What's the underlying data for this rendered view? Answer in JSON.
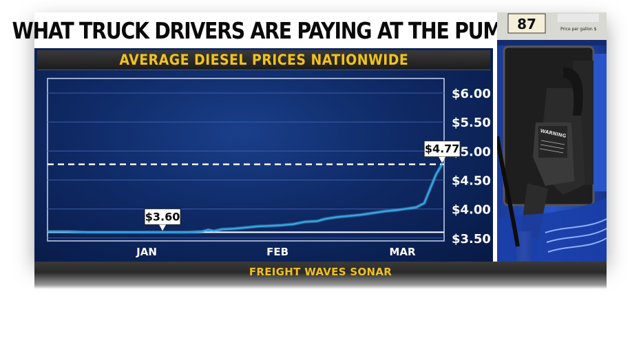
{
  "headline": "WHAT TRUCK DRIVERS ARE PAYING AT THE PUMP",
  "source": "FREIGHT WAVES SONAR",
  "pump_sign": {
    "grade": "87",
    "price_label": "Price per gallon $",
    "warning": "WARNING"
  },
  "colors": {
    "accent": "#f2c21b",
    "line": "#2ea8e6",
    "background": "#0f2a66"
  },
  "chart_data": {
    "type": "line",
    "title": "AVERAGE DIESEL PRICES NATIONWIDE",
    "xlabel": "",
    "ylabel": "",
    "ylim": [
      3.45,
      6.25
    ],
    "y_ticks": [
      {
        "value": 6.0,
        "label": "$6.00"
      },
      {
        "value": 5.5,
        "label": "$5.50"
      },
      {
        "value": 5.0,
        "label": "$5.00"
      },
      {
        "value": 4.5,
        "label": "$4.50"
      },
      {
        "value": 4.0,
        "label": "$4.00"
      },
      {
        "value": 3.5,
        "label": "$3.50"
      }
    ],
    "x_ticks": [
      {
        "t": 0.25,
        "label": "JAN"
      },
      {
        "t": 0.58,
        "label": "FEB"
      },
      {
        "t": 0.895,
        "label": "MAR"
      }
    ],
    "grid": true,
    "series": [
      {
        "name": "",
        "points": [
          [
            0.0,
            3.61
          ],
          [
            0.05,
            3.61
          ],
          [
            0.1,
            3.6
          ],
          [
            0.15,
            3.6
          ],
          [
            0.2,
            3.6
          ],
          [
            0.25,
            3.6
          ],
          [
            0.3,
            3.6
          ],
          [
            0.35,
            3.6
          ],
          [
            0.39,
            3.61
          ],
          [
            0.405,
            3.64
          ],
          [
            0.42,
            3.62
          ],
          [
            0.44,
            3.65
          ],
          [
            0.47,
            3.66
          ],
          [
            0.5,
            3.68
          ],
          [
            0.53,
            3.7
          ],
          [
            0.56,
            3.71
          ],
          [
            0.59,
            3.72
          ],
          [
            0.62,
            3.74
          ],
          [
            0.65,
            3.78
          ],
          [
            0.68,
            3.79
          ],
          [
            0.7,
            3.83
          ],
          [
            0.73,
            3.86
          ],
          [
            0.76,
            3.88
          ],
          [
            0.79,
            3.9
          ],
          [
            0.82,
            3.93
          ],
          [
            0.85,
            3.96
          ],
          [
            0.88,
            3.98
          ],
          [
            0.91,
            4.01
          ],
          [
            0.93,
            4.03
          ],
          [
            0.95,
            4.1
          ],
          [
            0.965,
            4.35
          ],
          [
            0.98,
            4.6
          ],
          [
            0.995,
            4.77
          ]
        ]
      }
    ],
    "reference_lines": [
      {
        "value": 4.77,
        "style": "dashed"
      },
      {
        "value": 3.6,
        "style": "solid"
      }
    ],
    "annotations": [
      {
        "label": "$3.60",
        "t": 0.29,
        "value": 3.6
      },
      {
        "label": "$4.77",
        "t": 0.995,
        "value": 4.77
      }
    ]
  }
}
